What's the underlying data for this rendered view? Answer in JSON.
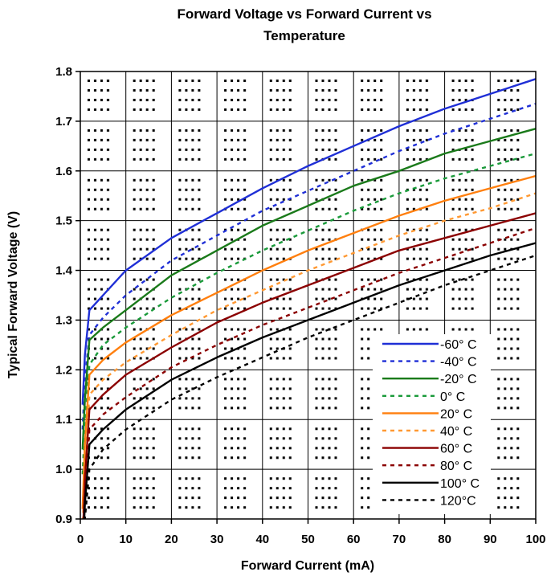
{
  "chart_data": {
    "type": "line",
    "title_lines": [
      "Forward Voltage vs Forward Current vs",
      "Temperature"
    ],
    "xlabel": "Forward Current (mA)",
    "ylabel": "Typical Forward Voltage (V)",
    "xlim": [
      0,
      100
    ],
    "ylim": [
      0.9,
      1.8
    ],
    "x_ticks": [
      "0",
      "10",
      "20",
      "30",
      "40",
      "50",
      "60",
      "70",
      "80",
      "90",
      "100"
    ],
    "y_ticks": [
      "0.9",
      "1.0",
      "1.1",
      "1.2",
      "1.3",
      "1.4",
      "1.5",
      "1.6",
      "1.7",
      "1.8"
    ],
    "grid": true,
    "legend_position": "lower-right",
    "x": [
      0.5,
      1,
      2,
      5,
      10,
      20,
      30,
      40,
      50,
      60,
      70,
      80,
      90,
      100
    ],
    "series": [
      {
        "name": "-60° C",
        "color": "#1f2fd6",
        "dashed": false,
        "values": [
          1.13,
          1.23,
          1.32,
          1.35,
          1.4,
          1.465,
          1.515,
          1.565,
          1.61,
          1.65,
          1.69,
          1.725,
          1.755,
          1.785
        ]
      },
      {
        "name": "-40° C",
        "color": "#1f2fd6",
        "dashed": true,
        "values": [
          1.08,
          1.18,
          1.27,
          1.305,
          1.35,
          1.42,
          1.47,
          1.52,
          1.56,
          1.6,
          1.64,
          1.675,
          1.705,
          1.735
        ]
      },
      {
        "name": "-20° C",
        "color": "#1a7a1a",
        "dashed": false,
        "values": [
          1.04,
          1.14,
          1.26,
          1.285,
          1.32,
          1.39,
          1.44,
          1.49,
          1.53,
          1.57,
          1.6,
          1.635,
          1.66,
          1.685
        ]
      },
      {
        "name": "0° C",
        "color": "#1a9a3a",
        "dashed": true,
        "values": [
          0.99,
          1.09,
          1.21,
          1.25,
          1.285,
          1.345,
          1.395,
          1.44,
          1.48,
          1.52,
          1.555,
          1.585,
          1.61,
          1.635
        ]
      },
      {
        "name": "20° C",
        "color": "#ff7f0e",
        "dashed": false,
        "values": [
          0.92,
          1.05,
          1.19,
          1.22,
          1.255,
          1.31,
          1.355,
          1.4,
          1.44,
          1.475,
          1.51,
          1.54,
          1.565,
          1.59
        ]
      },
      {
        "name": "40° C",
        "color": "#ff9933",
        "dashed": true,
        "values": [
          0.88,
          1.0,
          1.15,
          1.18,
          1.215,
          1.27,
          1.32,
          1.36,
          1.4,
          1.435,
          1.47,
          1.5,
          1.525,
          1.555
        ]
      },
      {
        "name": "60° C",
        "color": "#8b0000",
        "dashed": false,
        "values": [
          0.85,
          0.98,
          1.12,
          1.15,
          1.19,
          1.245,
          1.295,
          1.335,
          1.37,
          1.405,
          1.44,
          1.465,
          1.49,
          1.515
        ]
      },
      {
        "name": "80° C",
        "color": "#8b0000",
        "dashed": true,
        "values": [
          0.83,
          0.95,
          1.08,
          1.11,
          1.145,
          1.205,
          1.25,
          1.29,
          1.325,
          1.36,
          1.395,
          1.425,
          1.455,
          1.485
        ]
      },
      {
        "name": "100° C",
        "color": "#000000",
        "dashed": false,
        "values": [
          0.82,
          0.93,
          1.05,
          1.08,
          1.12,
          1.18,
          1.225,
          1.265,
          1.3,
          1.335,
          1.37,
          1.4,
          1.43,
          1.455
        ]
      },
      {
        "name": "120°C",
        "color": "#000000",
        "dashed": true,
        "values": [
          0.8,
          0.9,
          1.0,
          1.04,
          1.08,
          1.14,
          1.185,
          1.225,
          1.265,
          1.3,
          1.335,
          1.37,
          1.4,
          1.43
        ]
      }
    ]
  }
}
